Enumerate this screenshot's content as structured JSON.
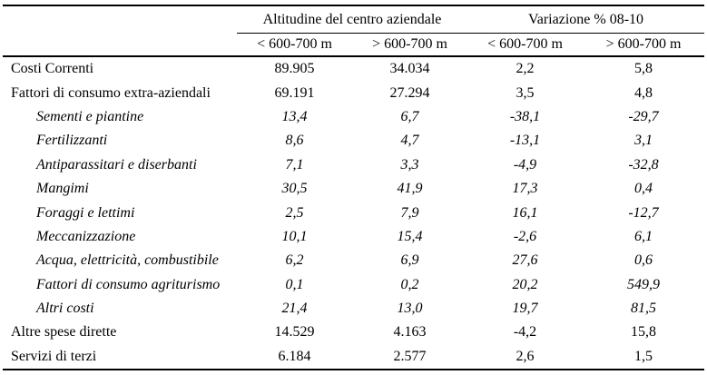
{
  "table": {
    "col_groups": [
      {
        "label": "Altitudine del centro aziendale"
      },
      {
        "label": "Variazione % 08-10"
      }
    ],
    "sub_headers": [
      "< 600-700 m",
      "> 600-700 m",
      "< 600-700 m",
      "> 600-700 m"
    ],
    "rows": [
      {
        "label": "Costi Correnti",
        "style": "normal",
        "values": [
          "89.905",
          "34.034",
          "2,2",
          "5,8"
        ]
      },
      {
        "label": "Fattori di consumo extra-aziendali",
        "style": "normal",
        "values": [
          "69.191",
          "27.294",
          "3,5",
          "4,8"
        ]
      },
      {
        "label": "Sementi e piantine",
        "style": "sub",
        "values": [
          "13,4",
          "6,7",
          "-38,1",
          "-29,7"
        ]
      },
      {
        "label": "Fertilizzanti",
        "style": "sub",
        "values": [
          "8,6",
          "4,7",
          "-13,1",
          "3,1"
        ]
      },
      {
        "label": "Antiparassitari e diserbanti",
        "style": "sub",
        "values": [
          "7,1",
          "3,3",
          "-4,9",
          "-32,8"
        ]
      },
      {
        "label": "Mangimi",
        "style": "sub",
        "values": [
          "30,5",
          "41,9",
          "17,3",
          "0,4"
        ]
      },
      {
        "label": "Foraggi e lettimi",
        "style": "sub",
        "values": [
          "2,5",
          "7,9",
          "16,1",
          "-12,7"
        ]
      },
      {
        "label": "Meccanizzazione",
        "style": "sub",
        "values": [
          "10,1",
          "15,4",
          "-2,6",
          "6,1"
        ]
      },
      {
        "label": "Acqua, elettricità, combustibile",
        "style": "sub",
        "values": [
          "6,2",
          "6,9",
          "27,6",
          "0,6"
        ]
      },
      {
        "label": "Fattori di consumo agriturismo",
        "style": "sub",
        "values": [
          "0,1",
          "0,2",
          "20,2",
          "549,9"
        ]
      },
      {
        "label": "Altri costi",
        "style": "sub",
        "values": [
          "21,4",
          "13,0",
          "19,7",
          "81,5"
        ]
      },
      {
        "label": "Altre spese dirette",
        "style": "normal",
        "values": [
          "14.529",
          "4.163",
          "-4,2",
          "15,8"
        ]
      },
      {
        "label": "Servizi di terzi",
        "style": "normal",
        "values": [
          "6.184",
          "2.577",
          "2,6",
          "1,5"
        ]
      }
    ]
  }
}
